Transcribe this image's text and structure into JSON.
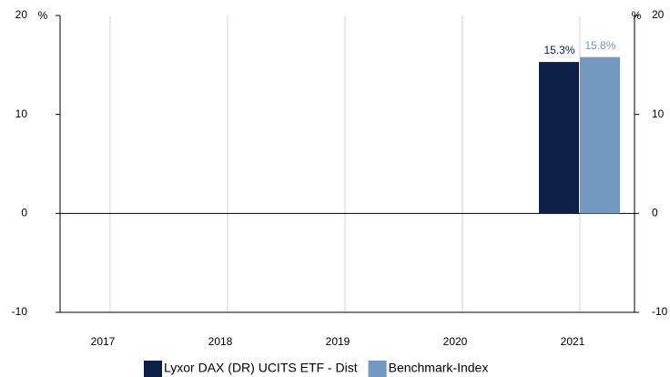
{
  "chart_data": {
    "type": "bar",
    "categories": [
      "2017",
      "2018",
      "2019",
      "2020",
      "2021"
    ],
    "series": [
      {
        "name": "Lyxor DAX (DR) UCITS ETF - Dist",
        "color": "#0c1f47",
        "label_color": "#0c1f47",
        "values": [
          null,
          null,
          null,
          null,
          15.3
        ],
        "value_labels": [
          null,
          null,
          null,
          null,
          "15.3%"
        ]
      },
      {
        "name": "Benchmark-Index",
        "color": "#7399c0",
        "label_color": "#7399c0",
        "values": [
          null,
          null,
          null,
          null,
          15.8
        ],
        "value_labels": [
          null,
          null,
          null,
          null,
          "15.8%"
        ]
      }
    ],
    "ylim": [
      -10,
      20
    ],
    "yticks": [
      -10,
      0,
      10,
      20
    ],
    "y_unit": "%",
    "y2_unit": "%",
    "y2lim": [
      -10,
      20
    ],
    "y2ticks": [
      -10,
      0,
      10,
      20
    ],
    "grid": "x",
    "legend": "bottom"
  }
}
